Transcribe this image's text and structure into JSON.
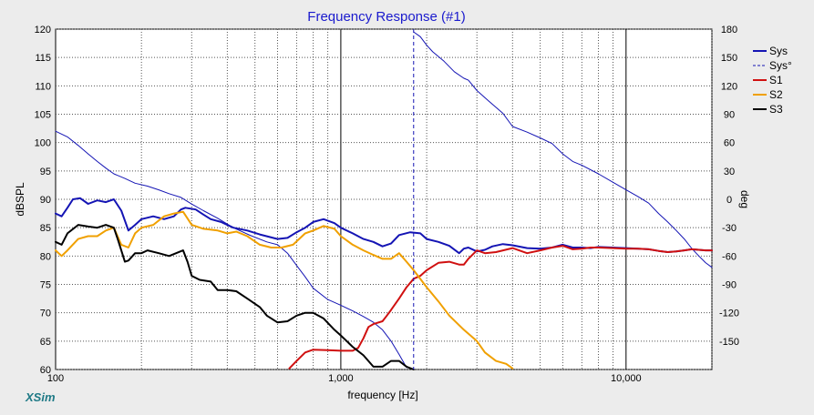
{
  "chart_data": {
    "type": "line",
    "title": "Frequency Response (#1)",
    "xlabel": "frequency [Hz]",
    "ylabel": "dBSPL",
    "y2label": "deg",
    "brand": "XSim",
    "x_scale": "log",
    "xlim": [
      100,
      20000
    ],
    "ylim": [
      60,
      120
    ],
    "y2lim": [
      -180,
      180
    ],
    "x_ticks": [
      {
        "value": 100,
        "label": "100"
      },
      {
        "value": 1000,
        "label": "1,000"
      },
      {
        "value": 10000,
        "label": "10,000"
      }
    ],
    "y_ticks": [
      {
        "value": 120,
        "label": "120"
      },
      {
        "value": 115,
        "label": "115"
      },
      {
        "value": 110,
        "label": "110"
      },
      {
        "value": 105,
        "label": "105"
      },
      {
        "value": 100,
        "label": "100"
      },
      {
        "value": 95,
        "label": "95"
      },
      {
        "value": 90,
        "label": "90"
      },
      {
        "value": 85,
        "label": "85"
      },
      {
        "value": 80,
        "label": "80"
      },
      {
        "value": 75,
        "label": "75"
      },
      {
        "value": 70,
        "label": "70"
      },
      {
        "value": 65,
        "label": "65"
      },
      {
        "value": 60,
        "label": "60"
      }
    ],
    "y2_ticks": [
      {
        "value": 180,
        "label": "180"
      },
      {
        "value": 150,
        "label": "150"
      },
      {
        "value": 120,
        "label": "120"
      },
      {
        "value": 90,
        "label": "90"
      },
      {
        "value": 60,
        "label": "60"
      },
      {
        "value": 30,
        "label": "30"
      },
      {
        "value": 0,
        "label": "0"
      },
      {
        "value": -30,
        "label": "-30"
      },
      {
        "value": -60,
        "label": "-60"
      },
      {
        "value": -90,
        "label": "-90"
      },
      {
        "value": -120,
        "label": "-120"
      },
      {
        "value": -150,
        "label": "-150"
      }
    ],
    "grid": true,
    "legend_position": "right",
    "series": [
      {
        "name": "Sys",
        "color": "#1414b4",
        "width": 2,
        "dash": "solid",
        "axis": "left",
        "points": [
          [
            100,
            87.5
          ],
          [
            105,
            87
          ],
          [
            110,
            88.5
          ],
          [
            115,
            90
          ],
          [
            122,
            90.2
          ],
          [
            130,
            89.2
          ],
          [
            140,
            89.8
          ],
          [
            150,
            89.5
          ],
          [
            160,
            90
          ],
          [
            170,
            88
          ],
          [
            180,
            84.5
          ],
          [
            190,
            85.5
          ],
          [
            200,
            86.5
          ],
          [
            220,
            87
          ],
          [
            240,
            86.5
          ],
          [
            260,
            87
          ],
          [
            275,
            88.2
          ],
          [
            285,
            88.5
          ],
          [
            310,
            88.2
          ],
          [
            330,
            87.3
          ],
          [
            350,
            86.5
          ],
          [
            380,
            86
          ],
          [
            420,
            85
          ],
          [
            470,
            84.5
          ],
          [
            520,
            83.8
          ],
          [
            600,
            83
          ],
          [
            650,
            83.2
          ],
          [
            700,
            84.2
          ],
          [
            750,
            85
          ],
          [
            800,
            86
          ],
          [
            870,
            86.5
          ],
          [
            950,
            85.8
          ],
          [
            1000,
            85
          ],
          [
            1100,
            84
          ],
          [
            1200,
            83
          ],
          [
            1300,
            82.5
          ],
          [
            1400,
            81.7
          ],
          [
            1500,
            82.2
          ],
          [
            1600,
            83.7
          ],
          [
            1750,
            84.2
          ],
          [
            1900,
            84
          ],
          [
            2000,
            83
          ],
          [
            2200,
            82.5
          ],
          [
            2400,
            81.8
          ],
          [
            2600,
            80.5
          ],
          [
            2700,
            81.3
          ],
          [
            2800,
            81.5
          ],
          [
            3000,
            80.8
          ],
          [
            3200,
            81.1
          ],
          [
            3400,
            81.7
          ],
          [
            3700,
            82.1
          ],
          [
            4000,
            81.9
          ],
          [
            4500,
            81.4
          ],
          [
            5000,
            81.3
          ],
          [
            5500,
            81.5
          ],
          [
            6000,
            82
          ],
          [
            6500,
            81.5
          ],
          [
            7000,
            81.5
          ],
          [
            7500,
            81.4
          ],
          [
            8000,
            81.6
          ],
          [
            9000,
            81.5
          ],
          [
            10000,
            81.4
          ],
          [
            11000,
            81.3
          ],
          [
            12000,
            81.2
          ],
          [
            13000,
            80.9
          ],
          [
            14000,
            80.7
          ],
          [
            15000,
            80.8
          ],
          [
            16000,
            81
          ],
          [
            17000,
            81.2
          ],
          [
            18000,
            81.1
          ],
          [
            19000,
            81
          ],
          [
            20000,
            81
          ]
        ]
      },
      {
        "name": "Sys°",
        "color": "#1414b4",
        "width": 1,
        "dash": "solid",
        "axis": "right",
        "points": [
          [
            100,
            72
          ],
          [
            110,
            66
          ],
          [
            120,
            57
          ],
          [
            130,
            48
          ],
          [
            140,
            40
          ],
          [
            150,
            33
          ],
          [
            160,
            27
          ],
          [
            175,
            22
          ],
          [
            190,
            17
          ],
          [
            210,
            14
          ],
          [
            230,
            10
          ],
          [
            250,
            6
          ],
          [
            275,
            2
          ],
          [
            300,
            -5
          ],
          [
            330,
            -12
          ],
          [
            370,
            -20
          ],
          [
            420,
            -30
          ],
          [
            480,
            -38
          ],
          [
            550,
            -45
          ],
          [
            600,
            -48
          ],
          [
            650,
            -57
          ],
          [
            700,
            -70
          ],
          [
            750,
            -82
          ],
          [
            800,
            -94
          ],
          [
            900,
            -106
          ],
          [
            1000,
            -112
          ],
          [
            1100,
            -118
          ],
          [
            1200,
            -124
          ],
          [
            1300,
            -130
          ],
          [
            1400,
            -138
          ],
          [
            1500,
            -150
          ],
          [
            1600,
            -164
          ],
          [
            1700,
            -178
          ]
        ]
      },
      {
        "name": "Sys°",
        "color": "#1414b4",
        "width": 1,
        "dash": "solid",
        "axis": "right",
        "points": [
          [
            1800,
            177
          ],
          [
            1900,
            172
          ],
          [
            2000,
            163
          ],
          [
            2100,
            156
          ],
          [
            2300,
            146
          ],
          [
            2500,
            135
          ],
          [
            2700,
            128
          ],
          [
            2800,
            126
          ],
          [
            3000,
            115
          ],
          [
            3300,
            104
          ],
          [
            3700,
            91
          ],
          [
            4000,
            77
          ],
          [
            4500,
            71
          ],
          [
            5000,
            65
          ],
          [
            5500,
            59
          ],
          [
            6000,
            48
          ],
          [
            6500,
            40
          ],
          [
            7000,
            36
          ],
          [
            8000,
            27
          ],
          [
            9000,
            18
          ],
          [
            10000,
            10
          ],
          [
            11000,
            3
          ],
          [
            12000,
            -4
          ],
          [
            13000,
            -15
          ],
          [
            14000,
            -24
          ],
          [
            15000,
            -33
          ],
          [
            16000,
            -42
          ],
          [
            17000,
            -52
          ],
          [
            18000,
            -60
          ],
          [
            19000,
            -67
          ],
          [
            20000,
            -72
          ]
        ]
      },
      {
        "name": "S1",
        "color": "#d01010",
        "width": 2,
        "dash": "solid",
        "axis": "left",
        "points": [
          [
            660,
            60.2
          ],
          [
            700,
            61.5
          ],
          [
            750,
            63
          ],
          [
            800,
            63.5
          ],
          [
            900,
            63.4
          ],
          [
            1000,
            63.3
          ],
          [
            1100,
            63.3
          ],
          [
            1150,
            63.8
          ],
          [
            1200,
            65.5
          ],
          [
            1250,
            67.5
          ],
          [
            1300,
            68
          ],
          [
            1400,
            68.5
          ],
          [
            1450,
            69.5
          ],
          [
            1500,
            70.5
          ],
          [
            1600,
            72.5
          ],
          [
            1700,
            74.5
          ],
          [
            1800,
            76
          ],
          [
            1900,
            76.5
          ],
          [
            2000,
            77.5
          ],
          [
            2200,
            78.8
          ],
          [
            2400,
            79
          ],
          [
            2600,
            78.5
          ],
          [
            2700,
            78.5
          ],
          [
            2800,
            79.5
          ],
          [
            3000,
            81
          ],
          [
            3200,
            80.5
          ],
          [
            3500,
            80.7
          ],
          [
            4000,
            81.4
          ],
          [
            4500,
            80.5
          ],
          [
            5000,
            81
          ],
          [
            5500,
            81.5
          ],
          [
            6000,
            81.8
          ],
          [
            6500,
            81.2
          ],
          [
            7000,
            81.3
          ],
          [
            7500,
            81.5
          ],
          [
            8000,
            81.5
          ],
          [
            9000,
            81.4
          ],
          [
            10000,
            81.3
          ],
          [
            11000,
            81.3
          ],
          [
            12000,
            81.2
          ],
          [
            13000,
            80.9
          ],
          [
            14000,
            80.7
          ],
          [
            15000,
            80.8
          ],
          [
            16000,
            81
          ],
          [
            17000,
            81.2
          ],
          [
            18000,
            81.1
          ],
          [
            19000,
            81
          ],
          [
            20000,
            81
          ]
        ]
      },
      {
        "name": "S2",
        "color": "#f0a000",
        "width": 2,
        "dash": "solid",
        "axis": "left",
        "points": [
          [
            100,
            81
          ],
          [
            105,
            80
          ],
          [
            110,
            81
          ],
          [
            120,
            83
          ],
          [
            130,
            83.5
          ],
          [
            140,
            83.5
          ],
          [
            150,
            84.5
          ],
          [
            160,
            85
          ],
          [
            170,
            82
          ],
          [
            180,
            81.5
          ],
          [
            190,
            84
          ],
          [
            200,
            85
          ],
          [
            220,
            85.5
          ],
          [
            240,
            87
          ],
          [
            260,
            87.5
          ],
          [
            280,
            87.8
          ],
          [
            300,
            85.5
          ],
          [
            330,
            84.8
          ],
          [
            370,
            84.5
          ],
          [
            400,
            84
          ],
          [
            430,
            84.3
          ],
          [
            470,
            83.5
          ],
          [
            520,
            82
          ],
          [
            570,
            81.5
          ],
          [
            620,
            81.5
          ],
          [
            680,
            82
          ],
          [
            750,
            84
          ],
          [
            800,
            84.5
          ],
          [
            870,
            85.3
          ],
          [
            950,
            84.8
          ],
          [
            1000,
            83.5
          ],
          [
            1100,
            82
          ],
          [
            1200,
            81
          ],
          [
            1300,
            80.2
          ],
          [
            1400,
            79.5
          ],
          [
            1500,
            79.5
          ],
          [
            1600,
            80.5
          ],
          [
            1700,
            79
          ],
          [
            1800,
            77.5
          ],
          [
            2000,
            74.5
          ],
          [
            2200,
            72
          ],
          [
            2400,
            69.5
          ],
          [
            2700,
            67
          ],
          [
            3000,
            65
          ],
          [
            3200,
            63
          ],
          [
            3500,
            61.5
          ],
          [
            3800,
            61
          ],
          [
            4000,
            60.2
          ]
        ]
      },
      {
        "name": "S3",
        "color": "#000000",
        "width": 2,
        "dash": "solid",
        "axis": "left",
        "points": [
          [
            100,
            82.5
          ],
          [
            105,
            82
          ],
          [
            110,
            84
          ],
          [
            120,
            85.5
          ],
          [
            130,
            85.2
          ],
          [
            140,
            85
          ],
          [
            150,
            85.5
          ],
          [
            160,
            85
          ],
          [
            165,
            83
          ],
          [
            175,
            79
          ],
          [
            180,
            79.2
          ],
          [
            190,
            80.5
          ],
          [
            200,
            80.5
          ],
          [
            210,
            81
          ],
          [
            230,
            80.5
          ],
          [
            250,
            80
          ],
          [
            280,
            81
          ],
          [
            290,
            79
          ],
          [
            300,
            76.5
          ],
          [
            320,
            75.8
          ],
          [
            350,
            75.5
          ],
          [
            370,
            74
          ],
          [
            400,
            74
          ],
          [
            430,
            73.8
          ],
          [
            470,
            72.5
          ],
          [
            520,
            71
          ],
          [
            550,
            69.5
          ],
          [
            600,
            68.3
          ],
          [
            650,
            68.5
          ],
          [
            700,
            69.5
          ],
          [
            750,
            70
          ],
          [
            800,
            70
          ],
          [
            870,
            69
          ],
          [
            950,
            67
          ],
          [
            1000,
            66
          ],
          [
            1100,
            64
          ],
          [
            1200,
            62.5
          ],
          [
            1300,
            60.5
          ],
          [
            1400,
            60.5
          ],
          [
            1500,
            61.5
          ],
          [
            1600,
            61.5
          ],
          [
            1700,
            60.5
          ],
          [
            1800,
            60
          ]
        ]
      }
    ],
    "legend": [
      {
        "label": "Sys",
        "color": "#1414b4",
        "dash": "solid"
      },
      {
        "label": "Sys°",
        "color": "#1414b4",
        "dash": "dashed"
      },
      {
        "label": "S1",
        "color": "#d01010",
        "dash": "solid"
      },
      {
        "label": "S2",
        "color": "#f0a000",
        "dash": "solid"
      },
      {
        "label": "S3",
        "color": "#000000",
        "dash": "solid"
      }
    ],
    "markers": [
      {
        "x": 1800,
        "color": "#1414b4",
        "dash": "dashed"
      }
    ]
  }
}
